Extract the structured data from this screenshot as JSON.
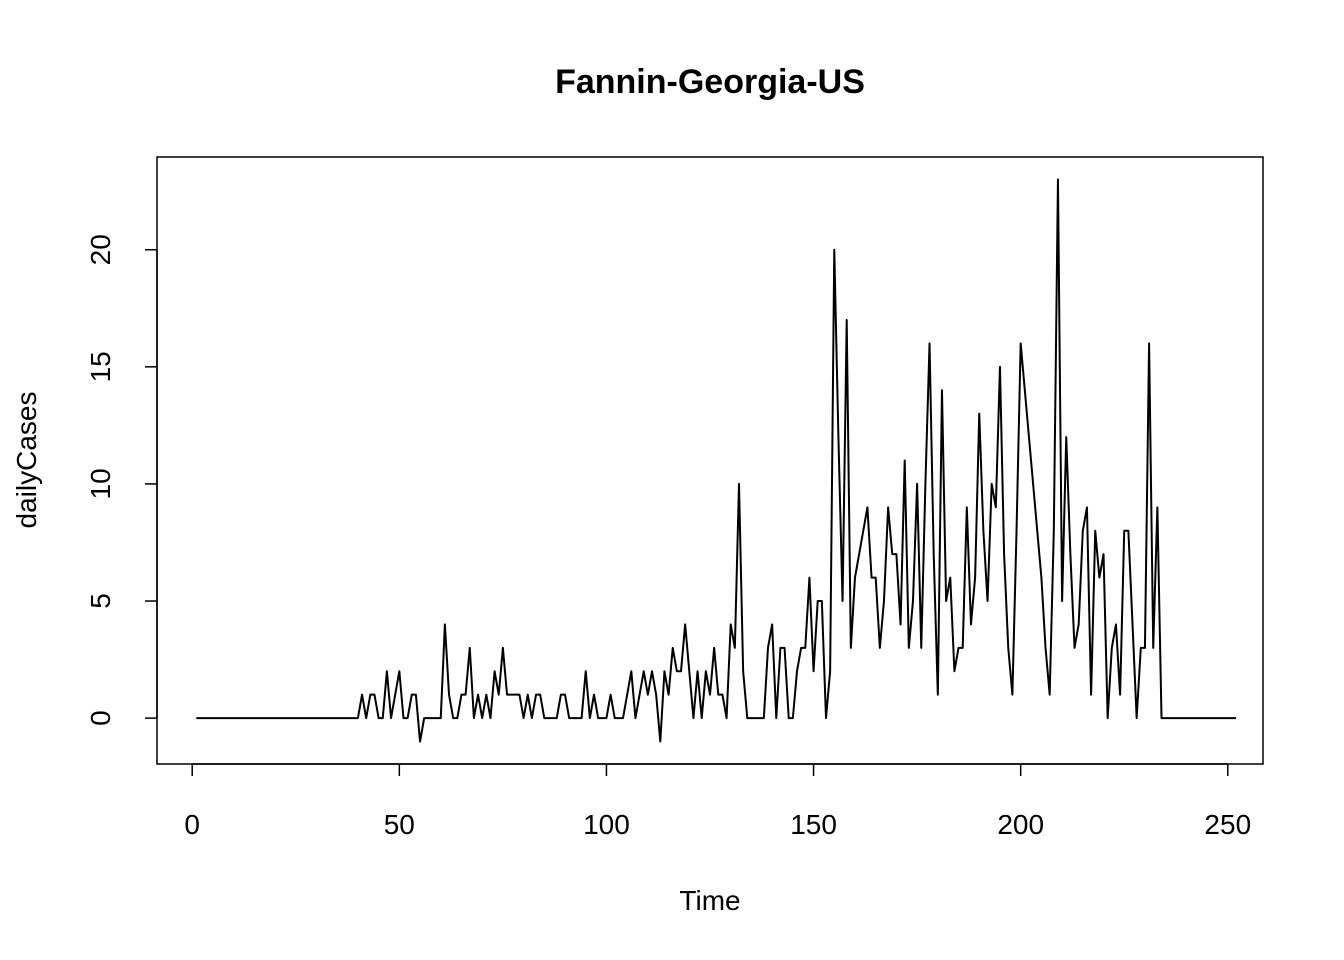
{
  "chart_data": {
    "type": "line",
    "title": "Fannin-Georgia-US",
    "xlabel": "Time",
    "ylabel": "dailyCases",
    "xlim": [
      -8.5,
      258.5
    ],
    "ylim": [
      -1.96,
      23.96
    ],
    "xticks": [
      0,
      50,
      100,
      150,
      200,
      250
    ],
    "yticks": [
      0,
      5,
      10,
      15,
      20
    ],
    "grid": false,
    "series": [
      {
        "x_start": 1,
        "values": [
          0,
          0,
          0,
          0,
          0,
          0,
          0,
          0,
          0,
          0,
          0,
          0,
          0,
          0,
          0,
          0,
          0,
          0,
          0,
          0,
          0,
          0,
          0,
          0,
          0,
          0,
          0,
          0,
          0,
          0,
          0,
          0,
          0,
          0,
          0,
          0,
          0,
          0,
          0,
          0,
          1,
          0,
          1,
          1,
          0,
          0,
          2,
          0,
          1,
          2,
          0,
          0,
          1,
          1,
          -1,
          0,
          0,
          0,
          0,
          0,
          4,
          1,
          0,
          0,
          1,
          1,
          3,
          0,
          1,
          0,
          1,
          0,
          2,
          1,
          3,
          1,
          1,
          1,
          1,
          0,
          1,
          0,
          1,
          1,
          0,
          0,
          0,
          0,
          1,
          1,
          0,
          0,
          0,
          0,
          2,
          0,
          1,
          0,
          0,
          0,
          1,
          0,
          0,
          0,
          1,
          2,
          0,
          1,
          2,
          1,
          2,
          1,
          -1,
          2,
          1,
          3,
          2,
          2,
          4,
          2,
          0,
          2,
          0,
          2,
          1,
          3,
          1,
          1,
          0,
          4,
          3,
          10,
          2,
          0,
          0,
          0,
          0,
          0,
          3,
          4,
          0,
          3,
          3,
          0,
          0,
          2,
          3,
          3,
          6,
          2,
          5,
          5,
          0,
          2,
          20,
          12,
          5,
          17,
          3,
          6,
          7,
          8,
          9,
          6,
          6,
          3,
          5,
          9,
          7,
          7,
          4,
          11,
          3,
          5,
          10,
          3,
          10,
          16,
          7,
          1,
          14,
          5,
          6,
          2,
          3,
          3,
          9,
          4,
          6,
          13,
          8,
          5,
          10,
          9,
          15,
          7,
          3,
          1,
          8,
          16,
          14,
          12,
          10,
          8,
          6,
          3,
          1,
          8,
          23,
          5,
          12,
          7,
          3,
          4,
          8,
          9,
          1,
          8,
          6,
          7,
          0,
          3,
          4,
          1,
          8,
          8,
          4,
          0,
          3,
          3,
          16,
          3,
          9,
          0,
          0,
          0,
          0,
          0,
          0,
          0,
          0,
          0,
          0,
          0,
          0,
          0,
          0,
          0,
          0,
          0,
          0,
          0
        ]
      }
    ]
  }
}
